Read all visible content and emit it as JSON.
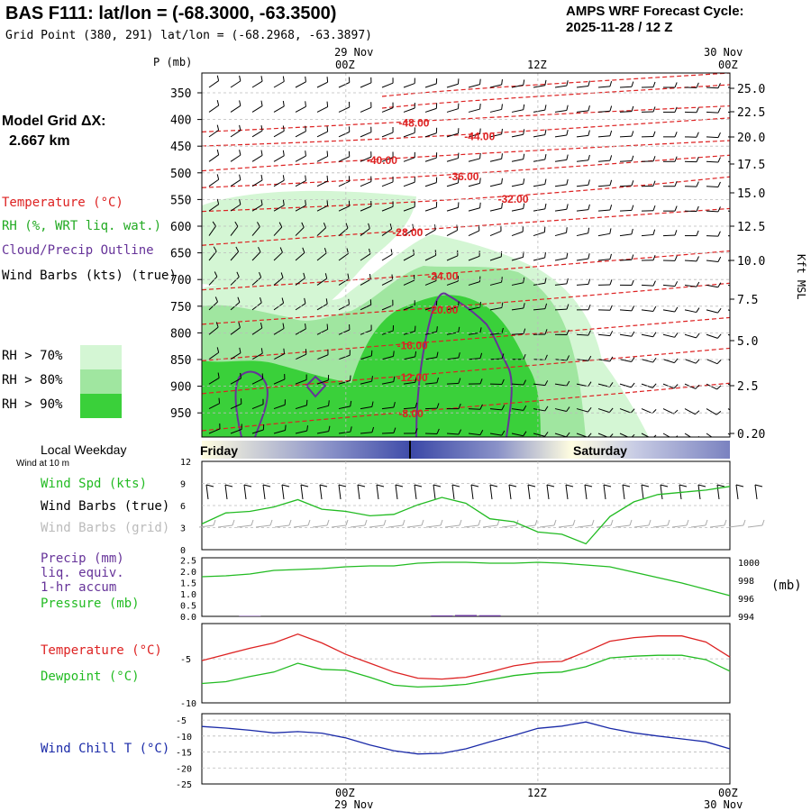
{
  "header": {
    "title": "BAS F111:  lat/lon = (-68.3000, -63.3500)",
    "subtitle": "Grid Point (380, 291) lat/lon = (-68.2968, -63.3897)",
    "cycle_label": "AMPS WRF Forecast Cycle:",
    "cycle_value": "2025-11-28 / 12  Z"
  },
  "model_grid": {
    "label": "Model Grid ΔX:",
    "value": "2.667 km"
  },
  "time_axis": {
    "top_dates": [
      "29 Nov",
      "30 Nov"
    ],
    "ticks": [
      "00Z",
      "12Z",
      "00Z"
    ],
    "weekday_label": "Local Weekday",
    "wind_label": "Wind at 10 m",
    "days": [
      "Friday",
      "Saturday"
    ]
  },
  "legend_main": {
    "temperature": "Temperature (°C)",
    "rh": "RH (%, WRT liq. wat.)",
    "cloud": "Cloud/Precip Outline",
    "wind": "Wind Barbs (kts) (true)",
    "rh70": "RH > 70%",
    "rh80": "RH > 80%",
    "rh90": "RH > 90%",
    "colors": {
      "temperature": "#dd2222",
      "rh": "#22aa22",
      "cloud": "#663399",
      "rh70": "#d4f6d4",
      "rh80": "#a0e6a0",
      "rh90": "#3ad03a"
    }
  },
  "legend_wind": {
    "speed": "Wind Spd (kts)",
    "barbs_true": "Wind Barbs (true)",
    "barbs_grid": "Wind Barbs (grid)"
  },
  "legend_precip": {
    "precip": "Precip (mm)",
    "liq": "liq. equiv.",
    "accum": "1-hr accum",
    "pressure": "Pressure (mb)",
    "unit": "(mb)"
  },
  "legend_temp": {
    "temperature": "Temperature (°C)",
    "dewpoint": "Dewpoint (°C)"
  },
  "legend_chill": {
    "label": "Wind Chill T (°C)"
  },
  "chart_data": [
    {
      "type": "heatmap",
      "yaxis_left_label": "P (mb)",
      "yaxis_right_label": "Kft MSL",
      "pressure_ticks": [
        350,
        400,
        450,
        500,
        550,
        600,
        650,
        700,
        750,
        800,
        850,
        900,
        950
      ],
      "height_ticks": [
        "25.0",
        "22.5",
        "20.0",
        "17.5",
        "15.0",
        "12.5",
        "10.0",
        "7.5",
        "5.0",
        "2.5",
        "0.20"
      ],
      "temperature_labels": [
        {
          "text": "-48.00",
          "hour": 3.3,
          "p": 405
        },
        {
          "text": "-44.00",
          "hour": 7.4,
          "p": 430
        },
        {
          "text": "-40.00",
          "hour": 1.3,
          "p": 475
        },
        {
          "text": "-36.00",
          "hour": 6.4,
          "p": 505
        },
        {
          "text": "-32.00",
          "hour": 9.5,
          "p": 548
        },
        {
          "text": "-28.00",
          "hour": 2.9,
          "p": 610
        },
        {
          "text": "-24.00",
          "hour": 5.1,
          "p": 692
        },
        {
          "text": "-20.00",
          "hour": 5.1,
          "p": 755
        },
        {
          "text": "-16.00",
          "hour": 3.2,
          "p": 822
        },
        {
          "text": "-12.00",
          "hour": 3.2,
          "p": 882
        },
        {
          "text": "-8.00",
          "hour": 3.3,
          "p": 950
        }
      ]
    },
    {
      "type": "line",
      "ylim": [
        0,
        12
      ],
      "yticks": [
        0,
        3,
        6,
        9,
        12
      ],
      "hours": [
        -9,
        -7.5,
        -6,
        -4.5,
        -3,
        -1.5,
        0,
        1.5,
        3,
        4.5,
        6,
        7.5,
        9,
        10.5,
        12,
        13.5,
        15,
        16.5,
        18,
        19.5,
        21,
        22.5,
        24
      ],
      "series": [
        {
          "name": "Wind Spd (kts)",
          "color": "#22bb22",
          "values": [
            3.5,
            5,
            5.2,
            5.8,
            6.8,
            5.5,
            5.2,
            4.6,
            4.8,
            6.1,
            7.1,
            6.3,
            4.2,
            3.8,
            2.4,
            2.1,
            0.8,
            4.5,
            6.5,
            7.5,
            7.8,
            8.1,
            8.6
          ]
        }
      ]
    },
    {
      "type": "line",
      "precip_yticks": [
        "0.0",
        "0.5",
        "1.0",
        "1.5",
        "2.0",
        "2.5"
      ],
      "pressure_yticks": [
        994,
        996,
        998,
        1000
      ],
      "hours": [
        -9,
        -7.5,
        -6,
        -4.5,
        -3,
        -1.5,
        0,
        1.5,
        3,
        4.5,
        6,
        7.5,
        9,
        10.5,
        12,
        13.5,
        15,
        16.5,
        18,
        19.5,
        21,
        22.5,
        24
      ],
      "series": [
        {
          "name": "Pressure (mb)",
          "color": "#22bb22",
          "values": [
            998.4,
            998.5,
            998.7,
            999.1,
            999.2,
            999.3,
            999.5,
            999.6,
            999.6,
            999.9,
            1000.0,
            1000.0,
            999.9,
            999.9,
            1000.0,
            999.9,
            999.7,
            999.5,
            998.9,
            998.3,
            997.7,
            997.0,
            996.3
          ]
        },
        {
          "name": "Precip (mm)",
          "color": "#663399",
          "values": [
            0.0,
            0.0,
            0.02,
            0.0,
            0.0,
            0.0,
            0.0,
            0.0,
            0.0,
            0.0,
            0.04,
            0.06,
            0.05,
            0.0,
            0.0,
            0.0,
            0.0,
            0.0,
            0.0,
            0.0,
            0.0,
            0.0,
            0.0
          ]
        }
      ]
    },
    {
      "type": "line",
      "ylim": [
        -10,
        0
      ],
      "yticks": [
        -5,
        -10
      ],
      "hours": [
        -9,
        -7.5,
        -6,
        -4.5,
        -3,
        -1.5,
        0,
        1.5,
        3,
        4.5,
        6,
        7.5,
        9,
        10.5,
        12,
        13.5,
        15,
        16.5,
        18,
        19.5,
        21,
        22.5,
        24
      ],
      "series": [
        {
          "name": "Temperature (°C)",
          "color": "#dd2222",
          "values": [
            -5.2,
            -4.5,
            -3.8,
            -3.2,
            -2.2,
            -3.2,
            -4.5,
            -5.5,
            -6.5,
            -7.2,
            -7.3,
            -7.1,
            -6.5,
            -5.8,
            -5.4,
            -5.3,
            -4.2,
            -3.0,
            -2.6,
            -2.4,
            -2.4,
            -3.1,
            -4.8
          ]
        },
        {
          "name": "Dewpoint (°C)",
          "color": "#22bb22",
          "values": [
            -7.8,
            -7.6,
            -7.0,
            -6.5,
            -5.5,
            -6.2,
            -6.3,
            -7.1,
            -8.0,
            -8.2,
            -8.1,
            -7.9,
            -7.4,
            -6.9,
            -6.6,
            -6.5,
            -5.9,
            -4.9,
            -4.7,
            -4.6,
            -4.6,
            -5.1,
            -6.4
          ]
        }
      ]
    },
    {
      "type": "line",
      "ylim": [
        -25,
        -5
      ],
      "yticks": [
        -5,
        -10,
        -15,
        -20,
        -25
      ],
      "hours": [
        -9,
        -7.5,
        -6,
        -4.5,
        -3,
        -1.5,
        0,
        1.5,
        3,
        4.5,
        6,
        7.5,
        9,
        10.5,
        12,
        13.5,
        15,
        16.5,
        18,
        19.5,
        21,
        22.5,
        24
      ],
      "series": [
        {
          "name": "Wind Chill T (°C)",
          "color": "#1a2aa8",
          "values": [
            -7.0,
            -7.5,
            -8.2,
            -9.0,
            -8.6,
            -9.1,
            -10.6,
            -12.8,
            -14.6,
            -15.6,
            -15.4,
            -14.0,
            -11.8,
            -9.8,
            -7.6,
            -6.9,
            -5.6,
            -7.6,
            -9.0,
            -10.0,
            -10.9,
            -11.8,
            -14.0
          ]
        }
      ]
    }
  ]
}
